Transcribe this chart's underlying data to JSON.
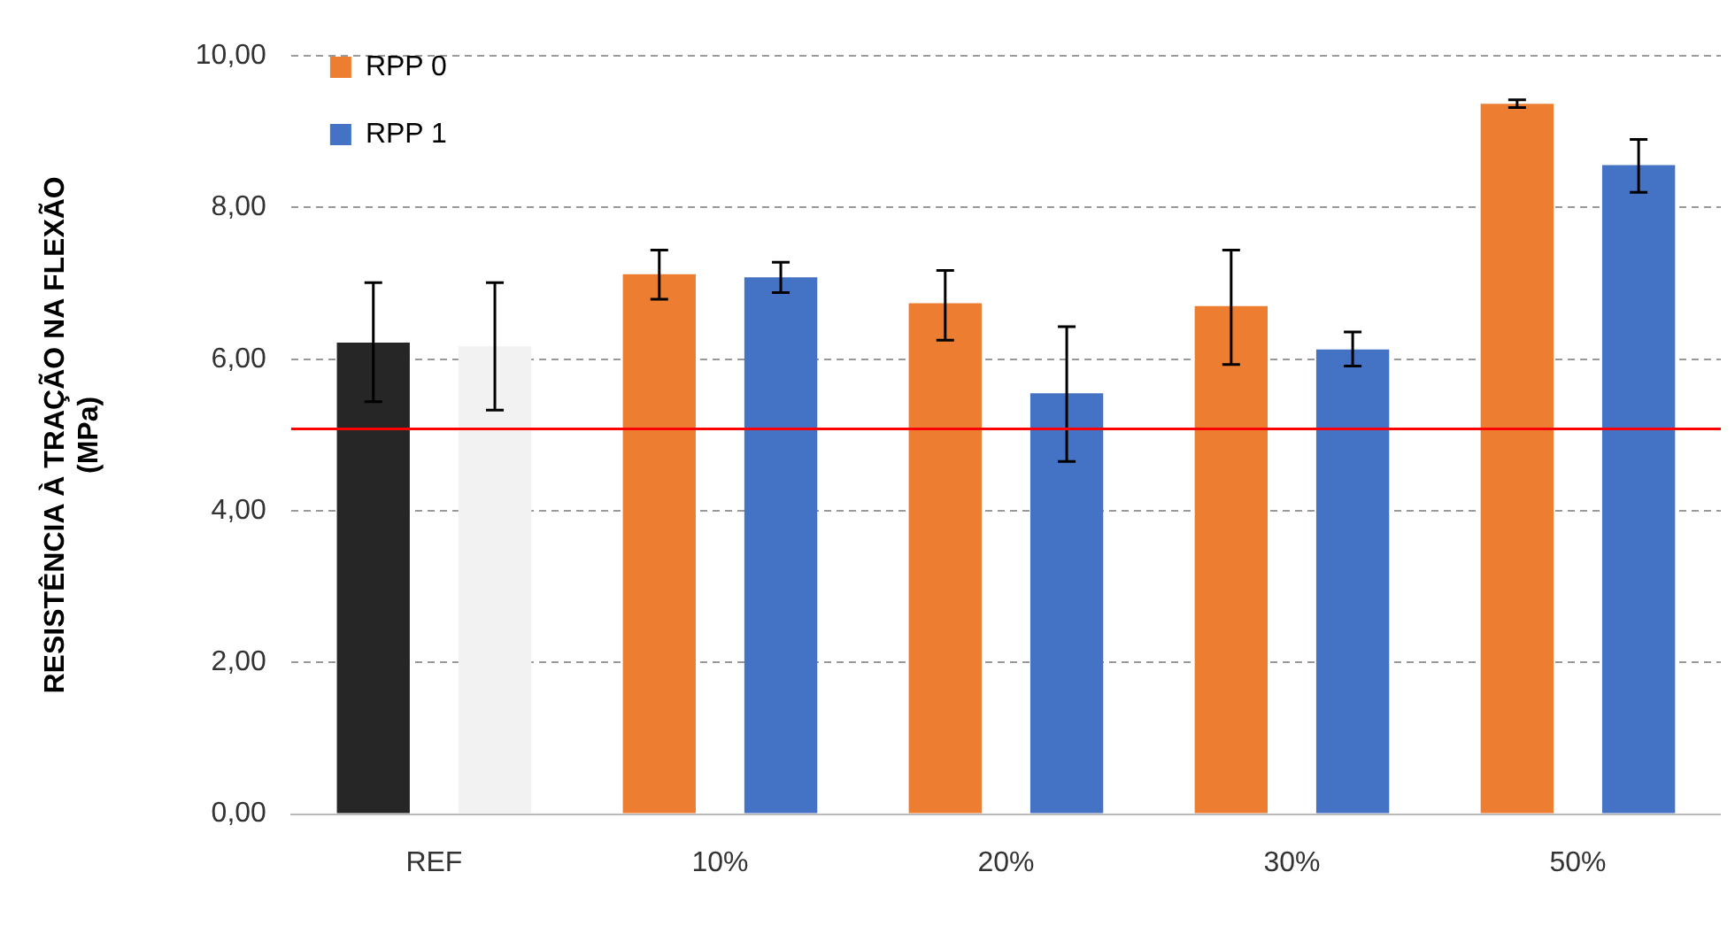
{
  "chart_data": {
    "type": "bar",
    "ylabel": "RESISTÊNCIA À TRAÇÃO NA FLEXÃO\n(MPa)",
    "categories": [
      "REF",
      "10%",
      "20%",
      "30%",
      "50%"
    ],
    "series": [
      {
        "name": "RPP 0",
        "color": "#ed7d31",
        "colors": [
          "#262626",
          "#ed7d31",
          "#ed7d31",
          "#ed7d31",
          "#ed7d31"
        ],
        "values": [
          6.22,
          7.12,
          6.74,
          6.7,
          9.37
        ],
        "errors": [
          [
            5.44,
            7.01
          ],
          [
            6.79,
            7.44
          ],
          [
            6.25,
            7.17
          ],
          [
            5.93,
            7.44
          ],
          [
            9.32,
            9.42
          ]
        ]
      },
      {
        "name": "RPP 1",
        "color": "#4472c4",
        "colors": [
          "#f2f2f2",
          "#4472c4",
          "#4472c4",
          "#4472c4",
          "#4472c4"
        ],
        "values": [
          6.17,
          7.08,
          5.55,
          6.13,
          8.56
        ],
        "errors": [
          [
            5.33,
            7.01
          ],
          [
            6.88,
            7.28
          ],
          [
            4.65,
            6.43
          ],
          [
            5.91,
            6.36
          ],
          [
            8.2,
            8.9
          ]
        ]
      }
    ],
    "ylim": [
      0,
      10
    ],
    "yticks": [
      {
        "value": 0,
        "label": "0,00"
      },
      {
        "value": 2,
        "label": "2,00"
      },
      {
        "value": 4,
        "label": "4,00"
      },
      {
        "value": 6,
        "label": "6,00"
      },
      {
        "value": 8,
        "label": "8,00"
      },
      {
        "value": 10,
        "label": "10,00"
      }
    ],
    "ref_lines": [
      {
        "axis": "y",
        "value": 5.08,
        "color": "#ff0000"
      }
    ],
    "grid": "y",
    "legend": "top left"
  }
}
